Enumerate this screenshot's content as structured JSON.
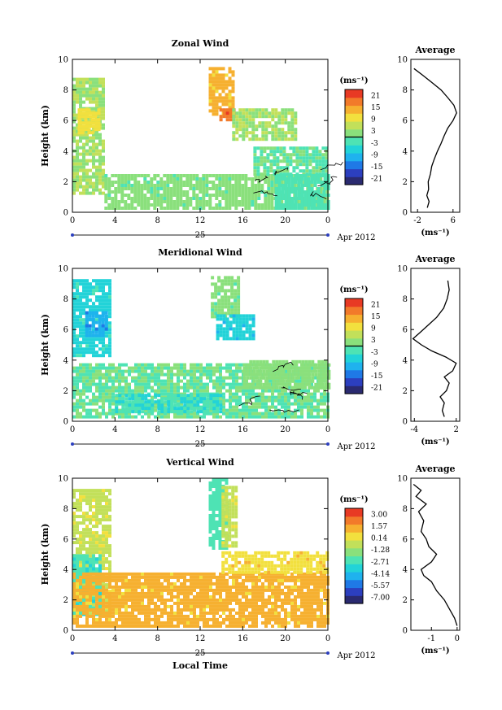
{
  "figure": {
    "xlabel": "Local Time",
    "date_label": "Apr 2012",
    "day_label": "25"
  },
  "colors": {
    "colormap": [
      "#2a2a70",
      "#2c3fbf",
      "#1f79e6",
      "#1fb2ee",
      "#22d3d8",
      "#4ee3b4",
      "#8ae07c",
      "#c2e05a",
      "#f2e03e",
      "#f6b030",
      "#f27a2a",
      "#e83a24"
    ]
  },
  "chart_data": [
    {
      "type": "heatmap",
      "id": "zonal",
      "title": "Zonal Wind",
      "ylabel": "Height (km)",
      "x_ticks": [
        "0",
        "4",
        "8",
        "12",
        "16",
        "20",
        "0"
      ],
      "x_range": [
        0,
        24
      ],
      "y_ticks": [
        "0",
        "2",
        "4",
        "6",
        "8",
        "10"
      ],
      "y_range": [
        0,
        10
      ],
      "colorbar": {
        "unit": "(ms⁻¹)",
        "ticks": [
          "21",
          "15",
          "9",
          "3",
          "-3",
          "-9",
          "-15",
          "-21"
        ],
        "range": [
          -24,
          24
        ]
      },
      "regions": [
        {
          "x": [
            0,
            3
          ],
          "y": [
            1.2,
            8.8
          ],
          "value": 4
        },
        {
          "x": [
            0.5,
            2.5
          ],
          "y": [
            5.2,
            6.8
          ],
          "value": 10
        },
        {
          "x": [
            12.8,
            15.2
          ],
          "y": [
            6.5,
            9.5
          ],
          "value": 13
        },
        {
          "x": [
            13.8,
            15.2
          ],
          "y": [
            6.0,
            6.8
          ],
          "value": 19
        },
        {
          "x": [
            15,
            21
          ],
          "y": [
            4.8,
            6.8
          ],
          "value": 4
        },
        {
          "x": [
            3,
            24
          ],
          "y": [
            0.3,
            2.5
          ],
          "value": 1
        },
        {
          "x": [
            17,
            24
          ],
          "y": [
            2.5,
            4.3
          ],
          "value": 0
        },
        {
          "x": [
            19,
            24
          ],
          "y": [
            0.3,
            2.5
          ],
          "value": -2
        }
      ],
      "contour_level": 0,
      "average": {
        "title": "Average",
        "xlabel": "(ms⁻¹)",
        "x_ticks": [
          "-2",
          "6"
        ],
        "x_range": [
          -3.5,
          7.5
        ],
        "y_range": [
          0,
          10
        ],
        "y_ticks": [
          "0",
          "2",
          "4",
          "6",
          "8",
          "10"
        ],
        "profile": [
          {
            "h": 0.3,
            "v": 0.2
          },
          {
            "h": 0.7,
            "v": 0.6
          },
          {
            "h": 1.1,
            "v": 0.1
          },
          {
            "h": 1.5,
            "v": 0.5
          },
          {
            "h": 2.0,
            "v": 0.4
          },
          {
            "h": 2.5,
            "v": 0.9
          },
          {
            "h": 3.0,
            "v": 1.2
          },
          {
            "h": 3.5,
            "v": 1.8
          },
          {
            "h": 4.0,
            "v": 2.5
          },
          {
            "h": 4.5,
            "v": 3.3
          },
          {
            "h": 5.0,
            "v": 4.0
          },
          {
            "h": 5.5,
            "v": 4.8
          },
          {
            "h": 6.0,
            "v": 6.0
          },
          {
            "h": 6.5,
            "v": 6.8
          },
          {
            "h": 7.0,
            "v": 6.2
          },
          {
            "h": 7.5,
            "v": 4.8
          },
          {
            "h": 8.0,
            "v": 3.3
          },
          {
            "h": 8.5,
            "v": 1.2
          },
          {
            "h": 9.0,
            "v": -1.0
          },
          {
            "h": 9.4,
            "v": -2.8
          }
        ]
      }
    },
    {
      "type": "heatmap",
      "id": "meridional",
      "title": "Meridional Wind",
      "ylabel": "Height (km)",
      "x_ticks": [
        "0",
        "4",
        "8",
        "12",
        "16",
        "20",
        "0"
      ],
      "x_range": [
        0,
        24
      ],
      "y_ticks": [
        "0",
        "2",
        "4",
        "6",
        "8",
        "10"
      ],
      "y_range": [
        0,
        10
      ],
      "colorbar": {
        "unit": "(ms⁻¹)",
        "ticks": [
          "21",
          "15",
          "9",
          "3",
          "-3",
          "-9",
          "-15",
          "-21"
        ],
        "range": [
          -24,
          24
        ]
      },
      "regions": [
        {
          "x": [
            0,
            3.5
          ],
          "y": [
            4.2,
            9.3
          ],
          "value": -5
        },
        {
          "x": [
            1.2,
            3.2
          ],
          "y": [
            5.5,
            7.2
          ],
          "value": -11
        },
        {
          "x": [
            13,
            15.5
          ],
          "y": [
            6.8,
            9.5
          ],
          "value": 1
        },
        {
          "x": [
            13.5,
            17
          ],
          "y": [
            5.5,
            7.0
          ],
          "value": -7
        },
        {
          "x": [
            0,
            24
          ],
          "y": [
            0.3,
            3.8
          ],
          "value": 0
        },
        {
          "x": [
            4,
            14
          ],
          "y": [
            0.6,
            1.8
          ],
          "value": -4
        },
        {
          "x": [
            16,
            24
          ],
          "y": [
            2.2,
            4.0
          ],
          "value": 2
        }
      ],
      "contour_level": 0,
      "average": {
        "title": "Average",
        "xlabel": "(ms⁻¹)",
        "x_ticks": [
          "-4",
          "2"
        ],
        "x_range": [
          -4.5,
          2.5
        ],
        "y_range": [
          0,
          10
        ],
        "y_ticks": [
          "0",
          "2",
          "4",
          "6",
          "8",
          "10"
        ],
        "profile": [
          {
            "h": 0.3,
            "v": 0.3
          },
          {
            "h": 0.7,
            "v": 0.0
          },
          {
            "h": 1.2,
            "v": 0.3
          },
          {
            "h": 1.6,
            "v": -0.3
          },
          {
            "h": 2.0,
            "v": 0.6
          },
          {
            "h": 2.5,
            "v": 1.0
          },
          {
            "h": 2.9,
            "v": 0.3
          },
          {
            "h": 3.3,
            "v": 1.5
          },
          {
            "h": 3.8,
            "v": 2.0
          },
          {
            "h": 4.2,
            "v": 0.5
          },
          {
            "h": 4.6,
            "v": -1.5
          },
          {
            "h": 5.0,
            "v": -3.0
          },
          {
            "h": 5.4,
            "v": -4.2
          },
          {
            "h": 5.8,
            "v": -3.2
          },
          {
            "h": 6.3,
            "v": -2.0
          },
          {
            "h": 6.8,
            "v": -0.8
          },
          {
            "h": 7.4,
            "v": 0.2
          },
          {
            "h": 8.0,
            "v": 0.7
          },
          {
            "h": 8.6,
            "v": 1.0
          },
          {
            "h": 9.2,
            "v": 0.8
          }
        ]
      }
    },
    {
      "type": "heatmap",
      "id": "vertical",
      "title": "Vertical Wind",
      "ylabel": "Height (km)",
      "x_ticks": [
        "0",
        "4",
        "8",
        "12",
        "16",
        "20",
        "0"
      ],
      "x_range": [
        0,
        24
      ],
      "y_ticks": [
        "0",
        "2",
        "4",
        "6",
        "8",
        "10"
      ],
      "y_range": [
        0,
        10
      ],
      "colorbar": {
        "unit": "(ms⁻¹)",
        "ticks": [
          "3.00",
          "1.57",
          "0.14",
          "-1.28",
          "-2.71",
          "-4.14",
          "-5.57",
          "-7.00"
        ],
        "range": [
          -7.7,
          3.7
        ]
      },
      "regions": [
        {
          "x": [
            0,
            3.5
          ],
          "y": [
            1.0,
            9.3
          ],
          "value": -0.3
        },
        {
          "x": [
            0,
            2.5
          ],
          "y": [
            1.0,
            5.0
          ],
          "value": -2.8
        },
        {
          "x": [
            12.8,
            14.5
          ],
          "y": [
            5.5,
            10
          ],
          "value": -2.4
        },
        {
          "x": [
            14,
            15.5
          ],
          "y": [
            5.5,
            9.5
          ],
          "value": -0.3
        },
        {
          "x": [
            0,
            24
          ],
          "y": [
            0.3,
            3.8
          ],
          "value": 1.1
        },
        {
          "x": [
            14,
            24
          ],
          "y": [
            3.8,
            5.2
          ],
          "value": 0.6
        }
      ],
      "average": {
        "title": "Average",
        "xlabel": "(ms⁻¹)",
        "x_ticks": [
          "-1",
          "0"
        ],
        "x_range": [
          -1.8,
          0.1
        ],
        "y_range": [
          0,
          10
        ],
        "y_ticks": [
          "0",
          "2",
          "4",
          "6",
          "8",
          "10"
        ],
        "profile": [
          {
            "h": 0.3,
            "v": 0.0
          },
          {
            "h": 0.8,
            "v": -0.1
          },
          {
            "h": 1.4,
            "v": -0.3
          },
          {
            "h": 2.0,
            "v": -0.5
          },
          {
            "h": 2.6,
            "v": -0.8
          },
          {
            "h": 3.2,
            "v": -1.0
          },
          {
            "h": 3.6,
            "v": -1.3
          },
          {
            "h": 4.0,
            "v": -1.4
          },
          {
            "h": 4.5,
            "v": -1.0
          },
          {
            "h": 5.0,
            "v": -0.8
          },
          {
            "h": 5.5,
            "v": -1.1
          },
          {
            "h": 6.0,
            "v": -1.2
          },
          {
            "h": 6.5,
            "v": -1.4
          },
          {
            "h": 7.2,
            "v": -1.3
          },
          {
            "h": 7.8,
            "v": -1.5
          },
          {
            "h": 8.3,
            "v": -1.2
          },
          {
            "h": 8.8,
            "v": -1.6
          },
          {
            "h": 9.2,
            "v": -1.4
          },
          {
            "h": 9.6,
            "v": -1.7
          }
        ]
      }
    }
  ]
}
